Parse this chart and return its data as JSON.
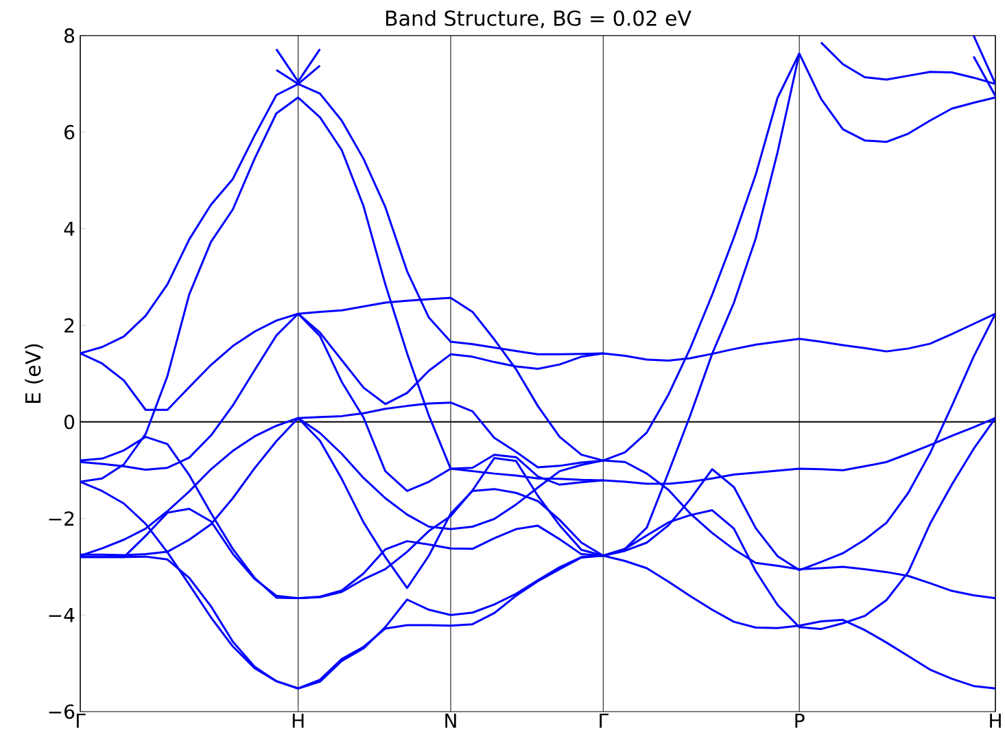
{
  "chart_data": {
    "type": "line",
    "title": "Band Structure, BG = 0.02 eV",
    "ylabel": "E (eV)",
    "categories": [
      "Γ",
      null,
      null,
      null,
      null,
      null,
      null,
      null,
      null,
      null,
      "H",
      null,
      null,
      null,
      null,
      null,
      null,
      "N",
      null,
      null,
      null,
      null,
      null,
      null,
      "Γ",
      null,
      null,
      null,
      null,
      null,
      null,
      null,
      null,
      "P",
      null,
      null,
      null,
      null,
      null,
      null,
      null,
      null,
      "H"
    ],
    "ylim": [
      -6,
      8
    ],
    "yticks": [
      {
        "value": -6,
        "label": "−6"
      },
      {
        "value": -4,
        "label": "−4"
      },
      {
        "value": -2,
        "label": "−2"
      },
      0,
      2,
      4,
      6,
      8
    ],
    "grid": "x",
    "ref_lines": [
      {
        "axis": "y",
        "value": 0,
        "color": "#000000"
      }
    ],
    "series": [
      {
        "color": "#0000ff",
        "values": [
          1.42,
          1.55,
          1.77,
          2.2,
          2.85,
          3.78,
          4.5,
          5.03,
          5.93,
          6.77,
          7.0,
          6.8,
          6.24,
          5.45,
          4.45,
          3.12,
          2.16,
          1.66,
          1.61,
          1.54,
          1.47,
          1.4,
          1.4,
          1.41,
          1.42,
          1.37,
          1.29,
          1.27,
          1.32,
          1.41,
          1.51,
          1.6,
          1.66,
          1.72,
          1.66,
          1.59,
          1.53,
          1.46,
          1.52,
          1.62,
          1.82,
          2.03,
          2.24
        ]
      },
      {
        "color": "#0000ff",
        "values": [
          1.42,
          1.21,
          0.86,
          0.25,
          0.25,
          0.72,
          1.18,
          1.57,
          1.87,
          2.1,
          2.24,
          2.28,
          2.31,
          2.39,
          2.47,
          2.51,
          2.54,
          2.57,
          2.28,
          1.71,
          1.09,
          0.33,
          -0.31,
          -0.68,
          -0.8,
          -0.63,
          -0.22,
          0.57,
          1.53,
          2.63,
          3.82,
          5.12,
          6.71,
          7.63,
          6.69,
          6.06,
          5.83,
          5.8,
          5.97,
          6.24,
          6.49,
          6.61,
          6.72
        ]
      },
      {
        "color": "#0000ff",
        "values": [
          -1.24,
          -1.17,
          -0.88,
          -0.25,
          0.95,
          2.64,
          3.73,
          4.4,
          5.45,
          6.39,
          6.72,
          6.31,
          5.63,
          4.47,
          2.85,
          1.42,
          0.13,
          -0.97,
          -1.02,
          -1.07,
          -1.11,
          -1.17,
          -1.18,
          -1.2,
          -1.21,
          -1.24,
          -1.28,
          -1.28,
          -1.24,
          -1.17,
          -1.09,
          -1.05,
          -1.01,
          -0.97,
          -0.98,
          -1.0,
          -0.92,
          -0.83,
          -0.66,
          -0.48,
          -0.29,
          -0.11,
          0.08
        ]
      },
      {
        "color": "#0000ff",
        "values": [
          -0.83,
          -0.87,
          -0.92,
          -0.99,
          -0.95,
          -0.74,
          -0.28,
          0.34,
          1.07,
          1.79,
          2.24,
          1.85,
          1.28,
          0.71,
          0.37,
          0.6,
          1.06,
          1.4,
          1.35,
          1.24,
          1.15,
          1.1,
          1.19,
          1.35,
          1.42,
          null,
          null,
          null,
          null,
          null,
          null,
          null,
          null,
          null,
          null,
          null,
          null,
          null,
          null,
          null,
          null,
          null,
          null
        ]
      },
      {
        "color": "#0000ff",
        "values": [
          -0.8,
          -0.76,
          -0.59,
          -0.31,
          -0.46,
          -1.1,
          -1.89,
          -2.63,
          -3.23,
          -3.64,
          -3.65,
          -3.62,
          -3.49,
          -3.14,
          -2.64,
          -2.47,
          -2.54,
          -2.62,
          -2.63,
          -2.41,
          -2.22,
          -2.15,
          -2.43,
          -2.74,
          -2.77,
          -2.63,
          -2.19,
          -1.04,
          0.14,
          1.41,
          2.47,
          3.8,
          5.58,
          7.63,
          null,
          null,
          null,
          null,
          null,
          null,
          null,
          null,
          null
        ]
      },
      {
        "color": "#0000ff",
        "values": [
          -1.24,
          -1.43,
          -1.69,
          -2.11,
          -2.7,
          -3.37,
          -4.05,
          -4.65,
          -5.1,
          -5.37,
          -5.52,
          -5.38,
          -4.95,
          -4.69,
          -4.25,
          -3.68,
          -3.89,
          -4.0,
          -3.95,
          -3.78,
          -3.56,
          -3.28,
          -3.01,
          -2.8,
          -2.77,
          -2.88,
          -3.03,
          -3.31,
          -3.61,
          -3.89,
          -4.14,
          -4.26,
          -4.27,
          -4.22,
          -4.13,
          -4.1,
          -4.31,
          -4.57,
          -4.85,
          -5.13,
          -5.32,
          -5.47,
          -5.52
        ]
      },
      {
        "color": "#0000ff",
        "values": [
          -2.77,
          -2.62,
          -2.44,
          -2.21,
          -1.85,
          -1.44,
          -0.98,
          -0.6,
          -0.3,
          -0.08,
          0.08,
          0.1,
          0.12,
          0.18,
          0.27,
          0.33,
          0.38,
          0.4,
          0.22,
          -0.33,
          -0.62,
          -0.94,
          -0.91,
          -0.84,
          -0.8,
          -0.83,
          -1.07,
          -1.41,
          -1.9,
          -2.3,
          -2.64,
          -2.92,
          -2.98,
          -3.05,
          -3.03,
          -3.0,
          -3.05,
          -3.11,
          -3.19,
          -3.34,
          -3.5,
          -3.59,
          -3.65
        ]
      },
      {
        "color": "#0000ff",
        "values": [
          -2.8,
          -2.8,
          -2.8,
          -2.36,
          -1.88,
          -1.8,
          -2.06,
          -2.73,
          -3.25,
          -3.6,
          -3.65,
          -3.63,
          -3.52,
          -3.26,
          -3.05,
          -2.69,
          -2.26,
          -1.95,
          -1.42,
          -0.75,
          -0.81,
          -1.53,
          -2.14,
          -2.65,
          -2.77,
          -2.67,
          -2.5,
          -2.14,
          -1.6,
          -0.98,
          -1.35,
          -2.2,
          -2.78,
          -3.07,
          -2.9,
          -2.72,
          -2.44,
          -2.09,
          -1.47,
          -0.65,
          0.33,
          1.35,
          2.24
        ]
      },
      {
        "color": "#0000ff",
        "values": [
          -2.8,
          -2.8,
          -2.8,
          -2.79,
          -2.85,
          -3.23,
          -3.82,
          -4.55,
          -5.07,
          -5.37,
          -5.52,
          -5.34,
          -4.91,
          -4.66,
          -4.28,
          -4.21,
          -4.21,
          -4.22,
          -4.19,
          -3.96,
          -3.6,
          -3.3,
          -3.05,
          -2.81,
          -2.77,
          -2.63,
          -2.35,
          -2.08,
          -1.93,
          -1.83,
          -2.21,
          -3.09,
          -3.79,
          -4.25,
          -4.29,
          -4.17,
          -4.02,
          -3.69,
          -3.11,
          -2.11,
          -1.3,
          -0.56,
          0.08
        ]
      },
      {
        "color": "#0000ff",
        "values": [
          -2.75,
          -2.75,
          -2.76,
          -2.74,
          -2.69,
          -2.44,
          -2.12,
          -1.58,
          -0.96,
          -0.4,
          0.08,
          -0.23,
          -0.66,
          -1.16,
          -1.58,
          -1.92,
          -2.17,
          -2.22,
          -2.17,
          -2.01,
          -1.71,
          -1.36,
          -1.02,
          -0.89,
          -0.8,
          null,
          null,
          null,
          null,
          null,
          null,
          null,
          null,
          null,
          null,
          null,
          null,
          null,
          null,
          null,
          null,
          null,
          null
        ]
      },
      {
        "color": "#0000ff",
        "values": [
          null,
          null,
          null,
          null,
          null,
          null,
          null,
          null,
          null,
          null,
          2.24,
          1.78,
          0.83,
          0.09,
          -1.02,
          -1.43,
          -1.24,
          -0.97,
          -0.95,
          -0.68,
          -0.73,
          -1.13,
          -1.3,
          -1.25,
          -1.21,
          null,
          null,
          null,
          null,
          null,
          null,
          null,
          null,
          null,
          null,
          null,
          null,
          null,
          null,
          null,
          null,
          null,
          null
        ]
      },
      {
        "color": "#0000ff",
        "values": [
          null,
          null,
          null,
          null,
          null,
          null,
          null,
          null,
          null,
          null,
          0.08,
          -0.39,
          -1.18,
          -2.08,
          -2.8,
          -3.44,
          -2.77,
          -1.9,
          -1.43,
          -1.39,
          -1.47,
          -1.64,
          -2.03,
          -2.5,
          -2.77,
          null,
          null,
          null,
          null,
          null,
          null,
          null,
          null,
          null,
          null,
          null,
          null,
          null,
          null,
          null,
          null,
          null,
          null
        ]
      },
      {
        "color": "#0000ff",
        "values": [
          null,
          null,
          null,
          null,
          null,
          null,
          null,
          null,
          null,
          7.72,
          7.05,
          7.72,
          null,
          null,
          null,
          null,
          null,
          null,
          null,
          null,
          null,
          null,
          null,
          null,
          null,
          null,
          null,
          null,
          null,
          null,
          null,
          null,
          null,
          null,
          null,
          null,
          null,
          null,
          null,
          null,
          null,
          null,
          null
        ]
      },
      {
        "color": "#0000ff",
        "values": [
          null,
          null,
          null,
          null,
          null,
          null,
          null,
          null,
          null,
          7.29,
          7.0,
          7.38,
          null,
          null,
          null,
          null,
          null,
          null,
          null,
          null,
          null,
          null,
          null,
          null,
          null,
          null,
          null,
          null,
          null,
          null,
          null,
          null,
          null,
          null,
          null,
          null,
          null,
          null,
          null,
          null,
          null,
          null,
          null
        ]
      },
      {
        "color": "#0000ff",
        "values": [
          null,
          null,
          null,
          null,
          null,
          null,
          null,
          null,
          null,
          null,
          null,
          null,
          null,
          null,
          null,
          null,
          null,
          null,
          null,
          null,
          null,
          null,
          null,
          null,
          null,
          null,
          null,
          null,
          null,
          null,
          null,
          null,
          null,
          null,
          7.86,
          7.41,
          7.14,
          7.09,
          7.17,
          7.25,
          7.24,
          7.13,
          7.0
        ]
      },
      {
        "color": "#0000ff",
        "values": [
          null,
          null,
          null,
          null,
          null,
          null,
          null,
          null,
          null,
          null,
          null,
          null,
          null,
          null,
          null,
          null,
          null,
          null,
          null,
          null,
          null,
          null,
          null,
          null,
          null,
          null,
          null,
          null,
          null,
          null,
          null,
          null,
          null,
          null,
          null,
          null,
          null,
          null,
          null,
          null,
          null,
          7.57,
          6.75
        ]
      },
      {
        "color": "#0000ff",
        "values": [
          null,
          null,
          null,
          null,
          null,
          null,
          null,
          null,
          null,
          null,
          null,
          null,
          null,
          null,
          null,
          null,
          null,
          null,
          null,
          null,
          null,
          null,
          null,
          null,
          null,
          null,
          null,
          null,
          null,
          null,
          null,
          null,
          null,
          null,
          null,
          null,
          null,
          null,
          null,
          null,
          null,
          8.0,
          7.0
        ]
      }
    ]
  }
}
